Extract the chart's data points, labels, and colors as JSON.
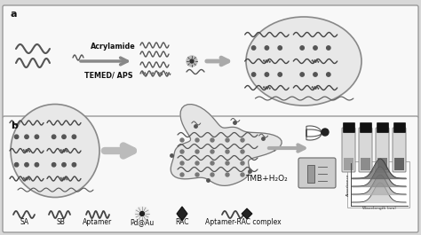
{
  "bg_color": "#d8d8d8",
  "panel_a_bg": "#f8f8f8",
  "panel_b_bg": "#f8f8f8",
  "border_color": "#999999",
  "text_color": "#111111",
  "label_a": "a",
  "label_b": "b",
  "acrylamide_text": "Acrylamide",
  "temed_text": "TEMED/ APS",
  "tmb_text": "TMB+H₂O₂",
  "legend_items": [
    "SA",
    "SB",
    "Aptamer",
    "Pd@Au",
    "RAC",
    "Aptamer-RAC complex"
  ]
}
